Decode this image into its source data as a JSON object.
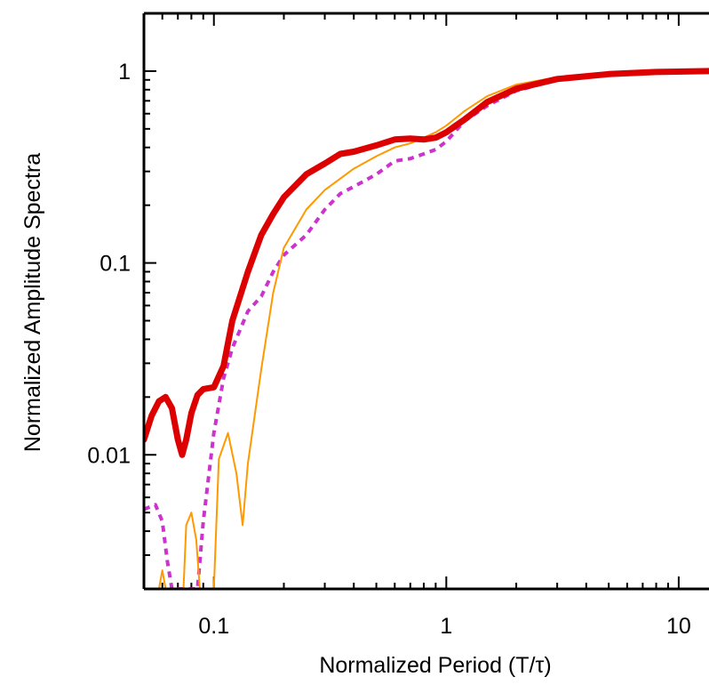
{
  "chart_data": {
    "type": "line",
    "title": "",
    "xlabel": "Normalized Period (T/τ)",
    "ylabel": "Normalized Amplitude Spectra",
    "x_scale": "log",
    "y_scale": "log",
    "xlim": [
      0.05,
      13.5
    ],
    "ylim": [
      0.002,
      2
    ],
    "x_ticks": [
      {
        "value": 0.1,
        "label": "0.1"
      },
      {
        "value": 1,
        "label": "1"
      },
      {
        "value": 10,
        "label": "10"
      }
    ],
    "y_ticks": [
      {
        "value": 0.01,
        "label": "0.01"
      },
      {
        "value": 0.1,
        "label": "0.1"
      },
      {
        "value": 1,
        "label": "1"
      }
    ],
    "grid": false,
    "legend": "none",
    "series": [
      {
        "color": "#dd0000",
        "style": "solid-thick",
        "points": [
          [
            0.05,
            0.012
          ],
          [
            0.054,
            0.016
          ],
          [
            0.058,
            0.019
          ],
          [
            0.062,
            0.02
          ],
          [
            0.066,
            0.0175
          ],
          [
            0.07,
            0.012
          ],
          [
            0.073,
            0.01
          ],
          [
            0.076,
            0.012
          ],
          [
            0.08,
            0.0165
          ],
          [
            0.085,
            0.0205
          ],
          [
            0.09,
            0.022
          ],
          [
            0.1,
            0.0225
          ],
          [
            0.11,
            0.029
          ],
          [
            0.12,
            0.05
          ],
          [
            0.14,
            0.09
          ],
          [
            0.16,
            0.14
          ],
          [
            0.18,
            0.18
          ],
          [
            0.2,
            0.22
          ],
          [
            0.25,
            0.29
          ],
          [
            0.3,
            0.33
          ],
          [
            0.35,
            0.37
          ],
          [
            0.4,
            0.38
          ],
          [
            0.5,
            0.41
          ],
          [
            0.6,
            0.44
          ],
          [
            0.7,
            0.445
          ],
          [
            0.8,
            0.44
          ],
          [
            0.9,
            0.45
          ],
          [
            1.0,
            0.48
          ],
          [
            1.2,
            0.56
          ],
          [
            1.5,
            0.69
          ],
          [
            2.0,
            0.81
          ],
          [
            3.0,
            0.91
          ],
          [
            5.0,
            0.965
          ],
          [
            8.0,
            0.99
          ],
          [
            13.5,
            1.0
          ]
        ]
      },
      {
        "color": "#cc33cc",
        "style": "dashed",
        "points": [
          [
            0.05,
            0.0052
          ],
          [
            0.056,
            0.0055
          ],
          [
            0.06,
            0.0045
          ],
          [
            0.063,
            0.0028
          ],
          [
            0.066,
            0.002
          ],
          [
            0.07,
            0.002
          ],
          [
            0.08,
            0.002
          ],
          [
            0.085,
            0.002
          ],
          [
            0.09,
            0.0045
          ],
          [
            0.1,
            0.013
          ],
          [
            0.11,
            0.025
          ],
          [
            0.12,
            0.036
          ],
          [
            0.14,
            0.056
          ],
          [
            0.16,
            0.067
          ],
          [
            0.18,
            0.09
          ],
          [
            0.2,
            0.11
          ],
          [
            0.25,
            0.14
          ],
          [
            0.3,
            0.19
          ],
          [
            0.35,
            0.23
          ],
          [
            0.4,
            0.25
          ],
          [
            0.5,
            0.29
          ],
          [
            0.6,
            0.34
          ],
          [
            0.7,
            0.35
          ],
          [
            0.8,
            0.37
          ],
          [
            0.9,
            0.39
          ],
          [
            1.0,
            0.43
          ],
          [
            1.2,
            0.55
          ],
          [
            1.5,
            0.66
          ],
          [
            2.0,
            0.79
          ],
          [
            3.0,
            0.9
          ],
          [
            5.0,
            0.955
          ],
          [
            8.0,
            0.98
          ],
          [
            13.5,
            0.99
          ]
        ]
      },
      {
        "color": "#ff9900",
        "style": "solid-thin",
        "points": [
          [
            0.058,
            0.002
          ],
          [
            0.06,
            0.0025
          ],
          [
            0.062,
            0.002
          ],
          [
            0.07,
            0.002
          ],
          [
            0.074,
            0.002
          ],
          [
            0.076,
            0.0043
          ],
          [
            0.08,
            0.005
          ],
          [
            0.084,
            0.0036
          ],
          [
            0.087,
            0.002
          ],
          [
            0.1,
            0.002
          ],
          [
            0.105,
            0.0095
          ],
          [
            0.115,
            0.013
          ],
          [
            0.125,
            0.008
          ],
          [
            0.133,
            0.0043
          ],
          [
            0.14,
            0.009
          ],
          [
            0.16,
            0.028
          ],
          [
            0.18,
            0.07
          ],
          [
            0.2,
            0.12
          ],
          [
            0.25,
            0.19
          ],
          [
            0.3,
            0.24
          ],
          [
            0.4,
            0.31
          ],
          [
            0.5,
            0.36
          ],
          [
            0.6,
            0.4
          ],
          [
            0.7,
            0.42
          ],
          [
            0.8,
            0.45
          ],
          [
            0.9,
            0.48
          ],
          [
            1.0,
            0.52
          ],
          [
            1.2,
            0.62
          ],
          [
            1.5,
            0.74
          ],
          [
            2.0,
            0.85
          ],
          [
            3.0,
            0.93
          ],
          [
            5.0,
            0.97
          ],
          [
            8.0,
            0.99
          ],
          [
            13.5,
            1.0
          ]
        ]
      }
    ]
  }
}
